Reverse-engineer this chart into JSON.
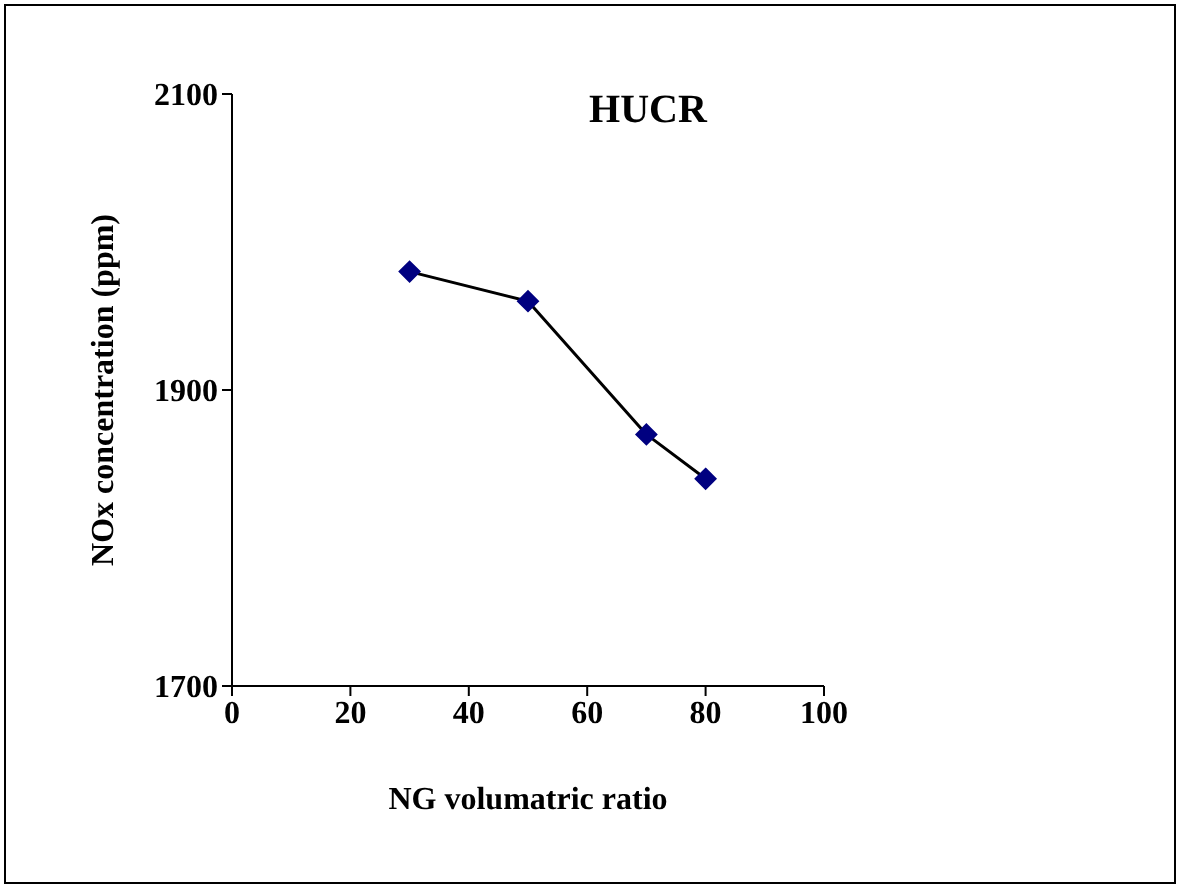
{
  "chart_data": {
    "type": "line",
    "title": "HUCR",
    "xlabel": "NG volumatric ratio",
    "ylabel": "NOx concentration (ppm)",
    "x": [
      30,
      50,
      70,
      80
    ],
    "series": [
      {
        "color": "#000080",
        "values": [
          1980,
          1960,
          1870,
          1840
        ]
      }
    ],
    "xlim": [
      0,
      100
    ],
    "xticks": [
      0,
      20,
      40,
      60,
      80,
      100
    ],
    "ylim": [
      1700,
      2100
    ],
    "yticks": [
      1700,
      1900,
      2100
    ],
    "grid": false,
    "legend": false,
    "marker": "diamond",
    "line_style": "solid"
  }
}
